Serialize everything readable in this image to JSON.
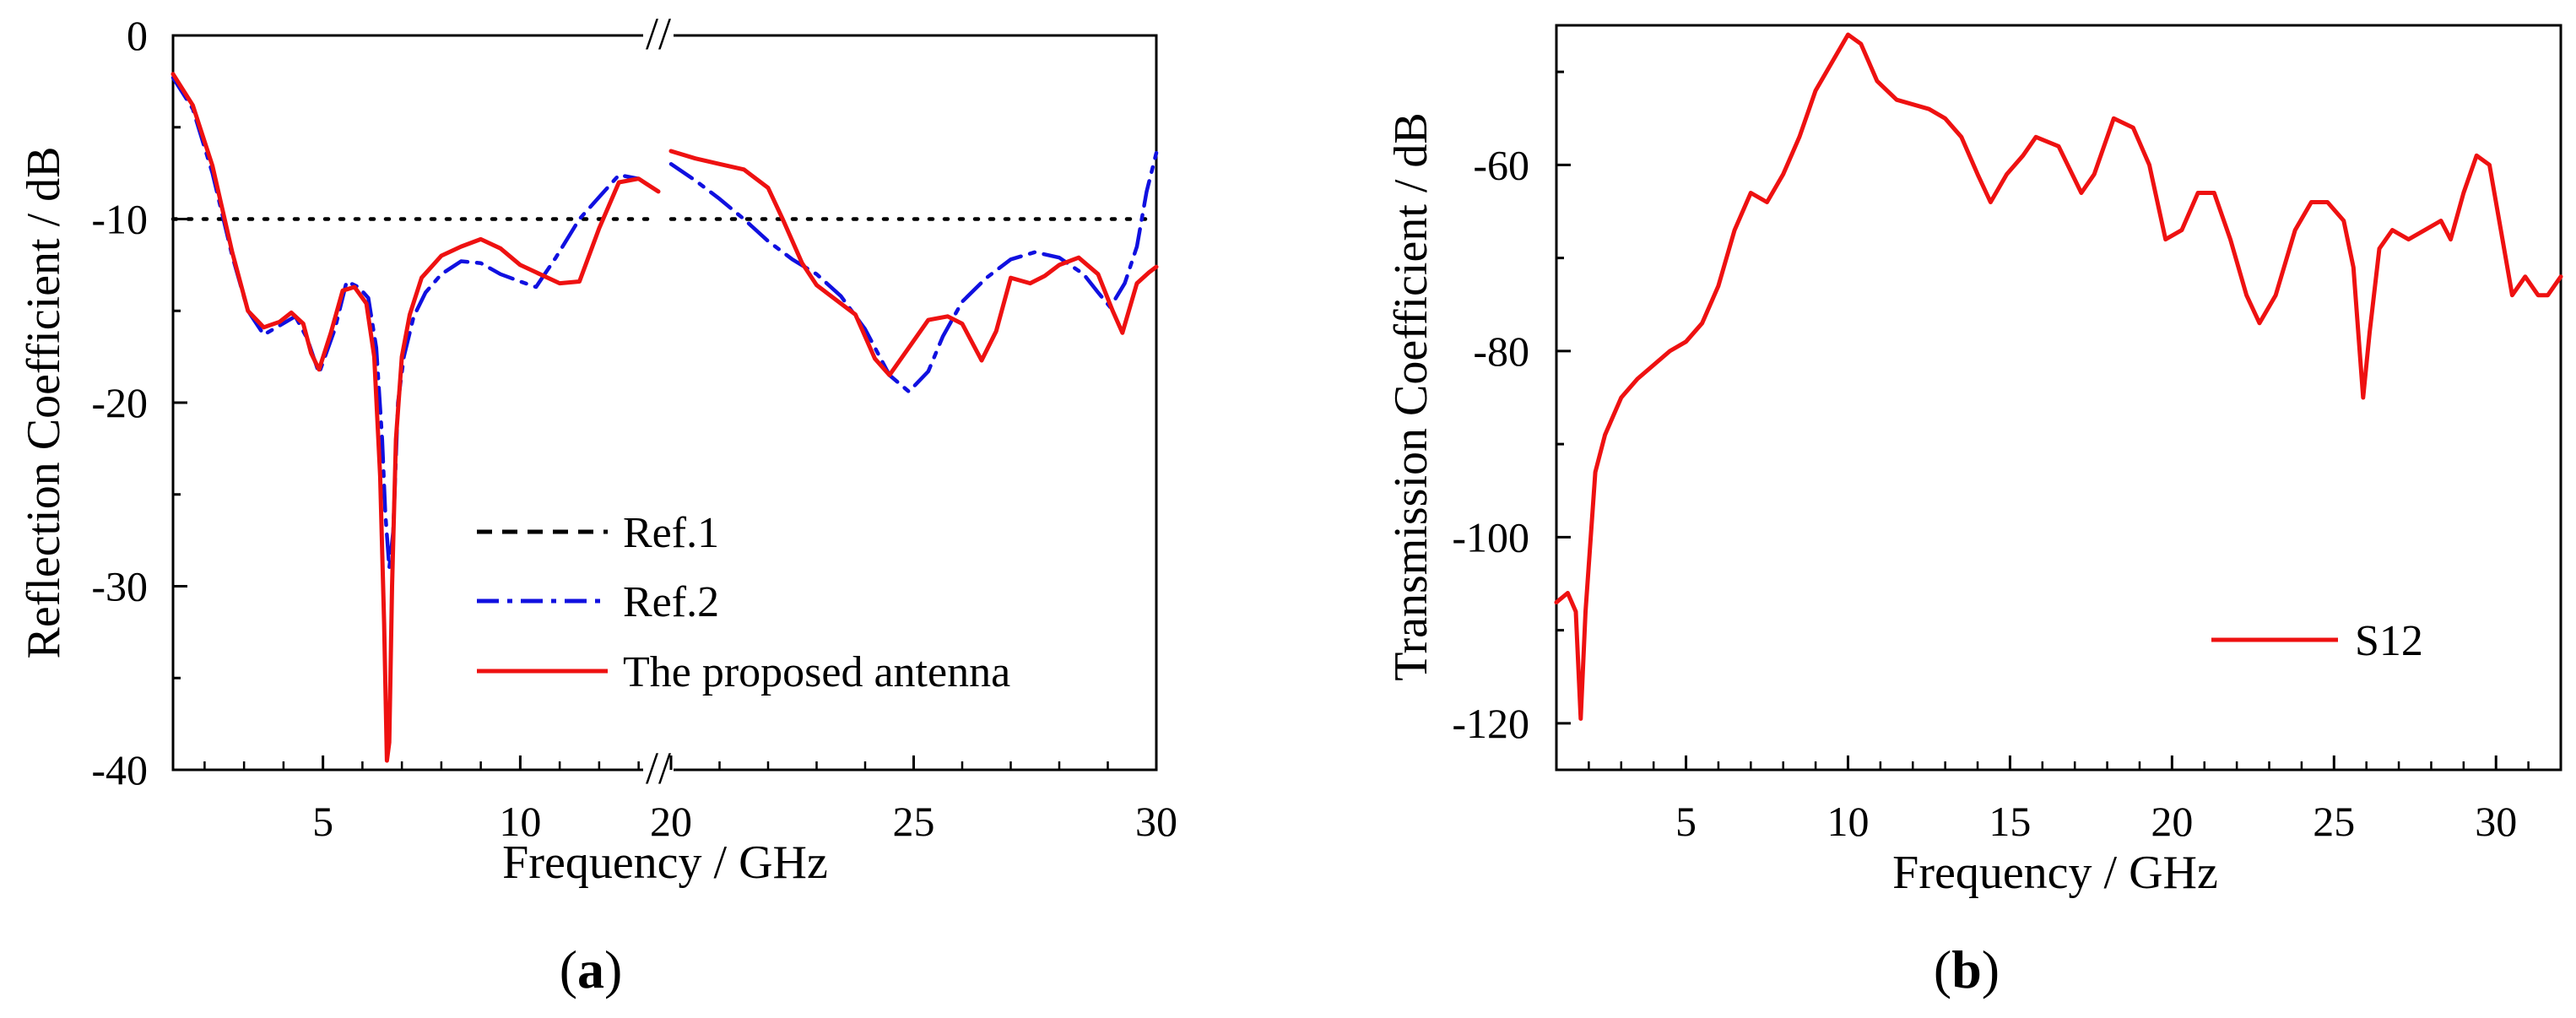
{
  "chart_data": [
    {
      "type": "line",
      "panel_label": {
        "open": "(",
        "letter": "a",
        "close": ")"
      },
      "title": "",
      "xlabel": "Frequency / GHz",
      "ylabel": "Reflection Coefficient / dB",
      "ylim": [
        -40,
        0
      ],
      "yticks": [
        0,
        -10,
        -20,
        -30,
        -40
      ],
      "ytick_labels": [
        "0",
        "-10",
        "-20",
        "-30",
        "-40"
      ],
      "x_axis_break": true,
      "x_segments": [
        {
          "xlim": [
            1.2,
            13.5
          ],
          "ticks": [
            5,
            10
          ],
          "tick_labels": [
            "5",
            "10"
          ]
        },
        {
          "xlim": [
            20,
            30
          ],
          "ticks": [
            20,
            25,
            30
          ],
          "tick_labels": [
            "20",
            "25",
            "30"
          ]
        }
      ],
      "break_mark": "//",
      "grid": false,
      "legend_position": "lower-right",
      "colors": {
        "ref1": "#000000",
        "ref2": "#1010e0",
        "proposed": "#ee1111"
      },
      "series": [
        {
          "name": "Ref.1",
          "color": "#000000",
          "style": "dotted",
          "segments": [
            [
              [
                1.2,
                -10
              ],
              [
                13.5,
                -10
              ]
            ],
            [
              [
                20,
                -10
              ],
              [
                30,
                -10
              ]
            ]
          ]
        },
        {
          "name": "Ref.2",
          "color": "#1010e0",
          "style": "dashdot",
          "segments": [
            [
              [
                1.2,
                -2.3
              ],
              [
                1.7,
                -4
              ],
              [
                2.2,
                -7.5
              ],
              [
                2.7,
                -12
              ],
              [
                3.1,
                -15
              ],
              [
                3.5,
                -16.3
              ],
              [
                3.9,
                -15.8
              ],
              [
                4.3,
                -15.3
              ],
              [
                4.6,
                -16.5
              ],
              [
                4.9,
                -18.4
              ],
              [
                5.3,
                -16
              ],
              [
                5.6,
                -13.4
              ],
              [
                5.9,
                -13.7
              ],
              [
                6.15,
                -14.3
              ],
              [
                6.35,
                -17
              ],
              [
                6.5,
                -22
              ],
              [
                6.58,
                -26
              ],
              [
                6.68,
                -29
              ],
              [
                6.78,
                -27
              ],
              [
                6.9,
                -20
              ],
              [
                7.05,
                -17.5
              ],
              [
                7.3,
                -15.3
              ],
              [
                7.6,
                -14
              ],
              [
                8,
                -13
              ],
              [
                8.5,
                -12.3
              ],
              [
                9,
                -12.4
              ],
              [
                9.5,
                -13
              ],
              [
                10,
                -13.4
              ],
              [
                10.4,
                -13.7
              ],
              [
                10.9,
                -12.1
              ],
              [
                11.5,
                -10
              ],
              [
                12,
                -8.8
              ],
              [
                12.5,
                -7.6
              ],
              [
                13,
                -7.8
              ],
              [
                13.5,
                -8.5
              ]
            ],
            [
              [
                20,
                -7
              ],
              [
                20.5,
                -7.9
              ],
              [
                21,
                -8.9
              ],
              [
                21.5,
                -10
              ],
              [
                22,
                -11.2
              ],
              [
                22.5,
                -12.2
              ],
              [
                23,
                -13
              ],
              [
                23.5,
                -14.2
              ],
              [
                24,
                -16
              ],
              [
                24.5,
                -18.5
              ],
              [
                24.9,
                -19.4
              ],
              [
                25.3,
                -18.3
              ],
              [
                25.6,
                -16.4
              ],
              [
                26,
                -14.5
              ],
              [
                26.5,
                -13.2
              ],
              [
                27,
                -12.2
              ],
              [
                27.5,
                -11.8
              ],
              [
                28,
                -12.1
              ],
              [
                28.5,
                -13
              ],
              [
                28.8,
                -14
              ],
              [
                29.05,
                -14.8
              ],
              [
                29.35,
                -13.5
              ],
              [
                29.6,
                -11.5
              ],
              [
                29.8,
                -8.5
              ],
              [
                30,
                -6.4
              ]
            ]
          ]
        },
        {
          "name": "The proposed antenna",
          "color": "#ee1111",
          "style": "solid",
          "segments": [
            [
              [
                1.2,
                -2.1
              ],
              [
                1.7,
                -3.8
              ],
              [
                2.2,
                -7.1
              ],
              [
                2.7,
                -11.8
              ],
              [
                3.1,
                -15
              ],
              [
                3.5,
                -15.9
              ],
              [
                3.9,
                -15.6
              ],
              [
                4.2,
                -15.1
              ],
              [
                4.5,
                -15.7
              ],
              [
                4.7,
                -17.3
              ],
              [
                4.9,
                -18.2
              ],
              [
                5.2,
                -16.2
              ],
              [
                5.5,
                -13.9
              ],
              [
                5.8,
                -13.7
              ],
              [
                6.1,
                -14.6
              ],
              [
                6.3,
                -17.5
              ],
              [
                6.45,
                -24
              ],
              [
                6.55,
                -32
              ],
              [
                6.62,
                -39.5
              ],
              [
                6.68,
                -38.5
              ],
              [
                6.75,
                -30
              ],
              [
                6.85,
                -22
              ],
              [
                7,
                -17.5
              ],
              [
                7.2,
                -15.2
              ],
              [
                7.5,
                -13.2
              ],
              [
                8,
                -12
              ],
              [
                8.5,
                -11.5
              ],
              [
                9,
                -11.1
              ],
              [
                9.5,
                -11.6
              ],
              [
                10,
                -12.5
              ],
              [
                10.5,
                -13
              ],
              [
                11,
                -13.5
              ],
              [
                11.5,
                -13.4
              ],
              [
                12,
                -10.5
              ],
              [
                12.5,
                -8
              ],
              [
                13,
                -7.8
              ],
              [
                13.5,
                -8.5
              ]
            ],
            [
              [
                20,
                -6.3
              ],
              [
                20.5,
                -6.7
              ],
              [
                21,
                -7
              ],
              [
                21.5,
                -7.3
              ],
              [
                22,
                -8.3
              ],
              [
                22.3,
                -10
              ],
              [
                22.7,
                -12.4
              ],
              [
                23,
                -13.6
              ],
              [
                23.4,
                -14.4
              ],
              [
                23.8,
                -15.2
              ],
              [
                24.2,
                -17.6
              ],
              [
                24.5,
                -18.5
              ],
              [
                24.9,
                -17
              ],
              [
                25.3,
                -15.5
              ],
              [
                25.7,
                -15.3
              ],
              [
                26,
                -15.7
              ],
              [
                26.4,
                -17.7
              ],
              [
                26.7,
                -16.1
              ],
              [
                27,
                -13.2
              ],
              [
                27.4,
                -13.5
              ],
              [
                27.7,
                -13.1
              ],
              [
                28,
                -12.5
              ],
              [
                28.4,
                -12.1
              ],
              [
                28.8,
                -13
              ],
              [
                29.1,
                -15
              ],
              [
                29.3,
                -16.2
              ],
              [
                29.6,
                -13.5
              ],
              [
                29.85,
                -12.9
              ],
              [
                30,
                -12.6
              ]
            ]
          ]
        }
      ]
    },
    {
      "type": "line",
      "panel_label": {
        "open": "(",
        "letter": "b",
        "close": ")"
      },
      "title": "",
      "xlabel": "Frequency / GHz",
      "ylabel": "Transmission Coefficient / dB",
      "xlim": [
        1,
        32
      ],
      "ylim": [
        -125,
        -45
      ],
      "xticks": [
        5,
        10,
        15,
        20,
        25,
        30
      ],
      "xtick_labels": [
        "5",
        "10",
        "15",
        "20",
        "25",
        "30"
      ],
      "yticks": [
        -60,
        -80,
        -100,
        -120
      ],
      "ytick_labels": [
        "-60",
        "-80",
        "-100",
        "-120"
      ],
      "grid": false,
      "legend_position": "lower-right",
      "colors": {
        "s12": "#ee1111"
      },
      "series": [
        {
          "name": "S12",
          "color": "#ee1111",
          "style": "solid",
          "points": [
            [
              1,
              -107
            ],
            [
              1.35,
              -106
            ],
            [
              1.6,
              -108
            ],
            [
              1.75,
              -119.5
            ],
            [
              1.9,
              -108
            ],
            [
              2.2,
              -93
            ],
            [
              2.5,
              -89
            ],
            [
              3,
              -85
            ],
            [
              3.5,
              -83
            ],
            [
              4,
              -81.5
            ],
            [
              4.5,
              -80
            ],
            [
              5,
              -79
            ],
            [
              5.5,
              -77
            ],
            [
              6,
              -73
            ],
            [
              6.5,
              -67
            ],
            [
              7,
              -63
            ],
            [
              7.5,
              -64
            ],
            [
              8,
              -61
            ],
            [
              8.5,
              -57
            ],
            [
              9,
              -52
            ],
            [
              9.5,
              -49
            ],
            [
              10,
              -46
            ],
            [
              10.4,
              -47
            ],
            [
              10.9,
              -51
            ],
            [
              11.5,
              -53
            ],
            [
              12.5,
              -54
            ],
            [
              13,
              -55
            ],
            [
              13.5,
              -57
            ],
            [
              14,
              -61
            ],
            [
              14.4,
              -64
            ],
            [
              14.9,
              -61
            ],
            [
              15.4,
              -59
            ],
            [
              15.8,
              -57
            ],
            [
              16.5,
              -58
            ],
            [
              17.2,
              -63
            ],
            [
              17.6,
              -61
            ],
            [
              18.2,
              -55
            ],
            [
              18.8,
              -56
            ],
            [
              19.3,
              -60
            ],
            [
              19.8,
              -68
            ],
            [
              20.3,
              -67
            ],
            [
              20.8,
              -63
            ],
            [
              21.3,
              -63
            ],
            [
              21.8,
              -68
            ],
            [
              22.3,
              -74
            ],
            [
              22.7,
              -77
            ],
            [
              23.2,
              -74
            ],
            [
              23.8,
              -67
            ],
            [
              24.3,
              -64
            ],
            [
              24.8,
              -64
            ],
            [
              25.3,
              -66
            ],
            [
              25.6,
              -71
            ],
            [
              25.9,
              -85
            ],
            [
              26.1,
              -78
            ],
            [
              26.4,
              -69
            ],
            [
              26.8,
              -67
            ],
            [
              27.3,
              -68
            ],
            [
              27.8,
              -67
            ],
            [
              28.3,
              -66
            ],
            [
              28.6,
              -68
            ],
            [
              29,
              -63
            ],
            [
              29.4,
              -59
            ],
            [
              29.8,
              -60
            ],
            [
              30.2,
              -68
            ],
            [
              30.5,
              -74
            ],
            [
              30.9,
              -72
            ],
            [
              31.3,
              -74
            ],
            [
              31.6,
              -74
            ],
            [
              32,
              -72
            ]
          ]
        }
      ]
    }
  ]
}
